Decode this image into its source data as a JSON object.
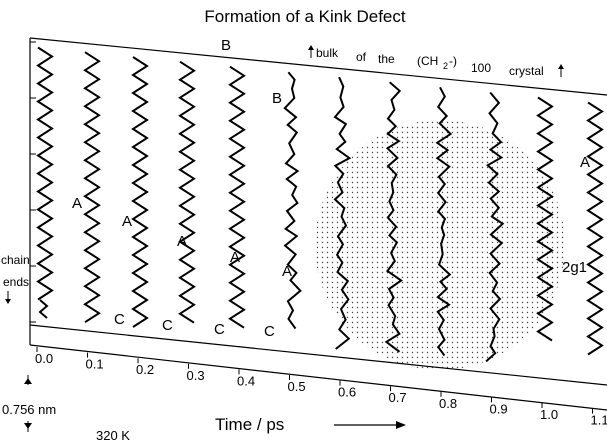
{
  "title": "Formation of a Kink Defect",
  "bulk_label": {
    "bulk": "bulk",
    "of": "of",
    "the": "the",
    "formula": "(CH",
    "subscript": "2",
    "formula_end": "-)",
    "index": "100",
    "crystal": "crystal"
  },
  "chain_ends": [
    "chain",
    "ends"
  ],
  "chain_labels": [
    "B",
    "B",
    "A",
    "A",
    "A",
    "A",
    "A",
    "A",
    "C",
    "C",
    "C",
    "C",
    "A",
    "2g1"
  ],
  "time_axis": {
    "ticks": [
      "0.0",
      "0.1",
      "0.2",
      "0.3",
      "0.4",
      "0.5",
      "0.6",
      "0.7",
      "0.8",
      "0.9",
      "1.0",
      "1.1"
    ],
    "title": "Time / ps"
  },
  "scale_label": "0.756 nm",
  "temperature": "320 K"
}
